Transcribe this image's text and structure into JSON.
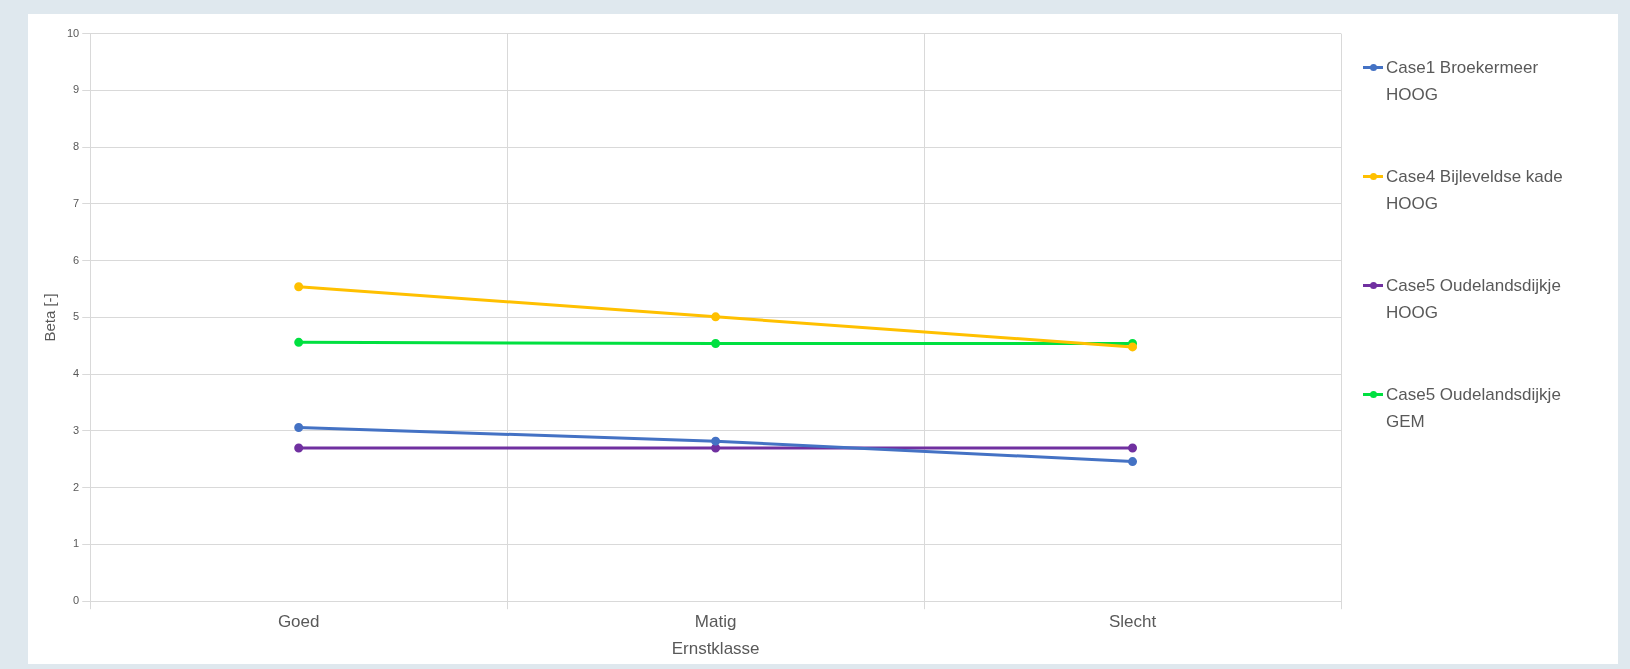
{
  "chart_data": {
    "type": "line",
    "xlabel": "Ernstklasse",
    "ylabel": "Beta [-]",
    "categories": [
      "Goed",
      "Matig",
      "Slecht"
    ],
    "ylim": [
      0,
      10
    ],
    "yticks": [
      0,
      1,
      2,
      3,
      4,
      5,
      6,
      7,
      8,
      9,
      10
    ],
    "grid": true,
    "legend": "right",
    "marker": "circle",
    "line_style": "solid",
    "series": [
      {
        "name": "Case1 Broekermeer HOOG",
        "color": "#4472c4",
        "values": [
          3.06,
          2.82,
          2.46
        ]
      },
      {
        "name": "Case4 Bijleveldse kade HOOG",
        "color": "#ffc000",
        "values": [
          5.54,
          5.01,
          4.48
        ]
      },
      {
        "name": "Case5 Oudelandsdijkje HOOG",
        "color": "#7030a0",
        "values": [
          2.7,
          2.7,
          2.7
        ]
      },
      {
        "name": "Case5 Oudelandsdijkje GEM",
        "color": "#00e040",
        "values": [
          4.56,
          4.54,
          4.54
        ]
      }
    ]
  }
}
